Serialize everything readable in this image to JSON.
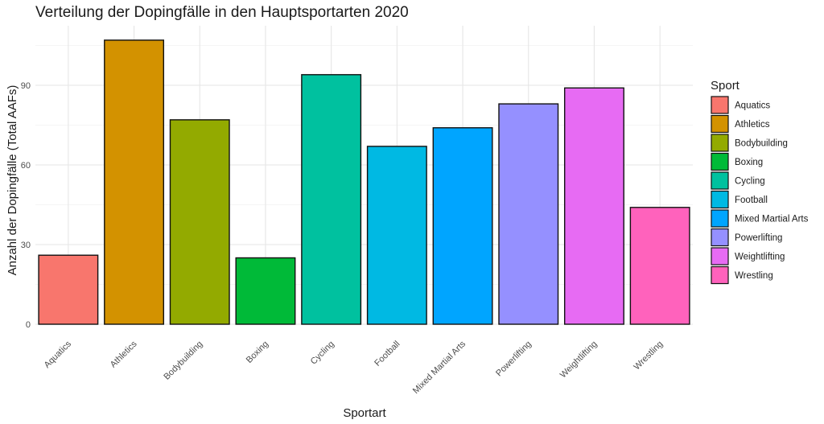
{
  "chart_data": {
    "type": "bar",
    "title": "Verteilung der Dopingfälle in den Hauptsportarten 2020",
    "xlabel": "Sportart",
    "ylabel": "Anzahl der Dopingfälle (Total AAFs)",
    "categories": [
      "Aquatics",
      "Athletics",
      "Bodybuilding",
      "Boxing",
      "Cycling",
      "Football",
      "Mixed Martial Arts",
      "Powerlifting",
      "Weightlifting",
      "Wrestling"
    ],
    "values": [
      26,
      107,
      77,
      25,
      94,
      67,
      74,
      83,
      89,
      44
    ],
    "colors": [
      "#F8766D",
      "#D39200",
      "#93AA00",
      "#00BA38",
      "#00C19F",
      "#00B9E3",
      "#00A5FF",
      "#9590FF",
      "#E76BF3",
      "#FF62BC"
    ],
    "yticks": [
      0,
      30,
      60,
      90
    ],
    "ylim": [
      0,
      112
    ],
    "grid": true,
    "legend": {
      "title": "Sport",
      "position": "right"
    }
  }
}
